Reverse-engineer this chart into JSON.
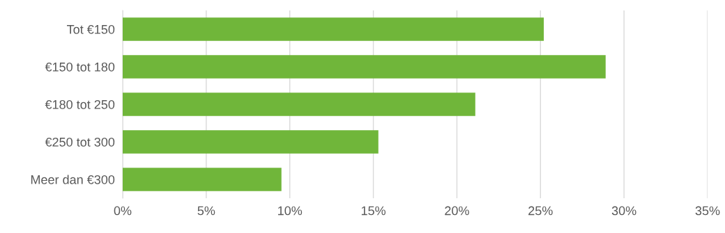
{
  "chart_data": {
    "type": "bar",
    "orientation": "horizontal",
    "categories": [
      "Tot €150",
      "€150 tot 180",
      "€180 tot 250",
      "€250 tot 300",
      "Meer dan €300"
    ],
    "values": [
      25.2,
      28.9,
      21.1,
      15.3,
      9.5
    ],
    "color": "#70b63a",
    "xlim": [
      0,
      35
    ],
    "xticks": [
      {
        "value": 0,
        "label": "0%"
      },
      {
        "value": 5,
        "label": "5%"
      },
      {
        "value": 10,
        "label": "10%"
      },
      {
        "value": 15,
        "label": "15%"
      },
      {
        "value": 20,
        "label": "20%"
      },
      {
        "value": 25,
        "label": "25%"
      },
      {
        "value": 30,
        "label": "30%"
      },
      {
        "value": 35,
        "label": "35%"
      }
    ],
    "grid": "x",
    "legend": false
  }
}
